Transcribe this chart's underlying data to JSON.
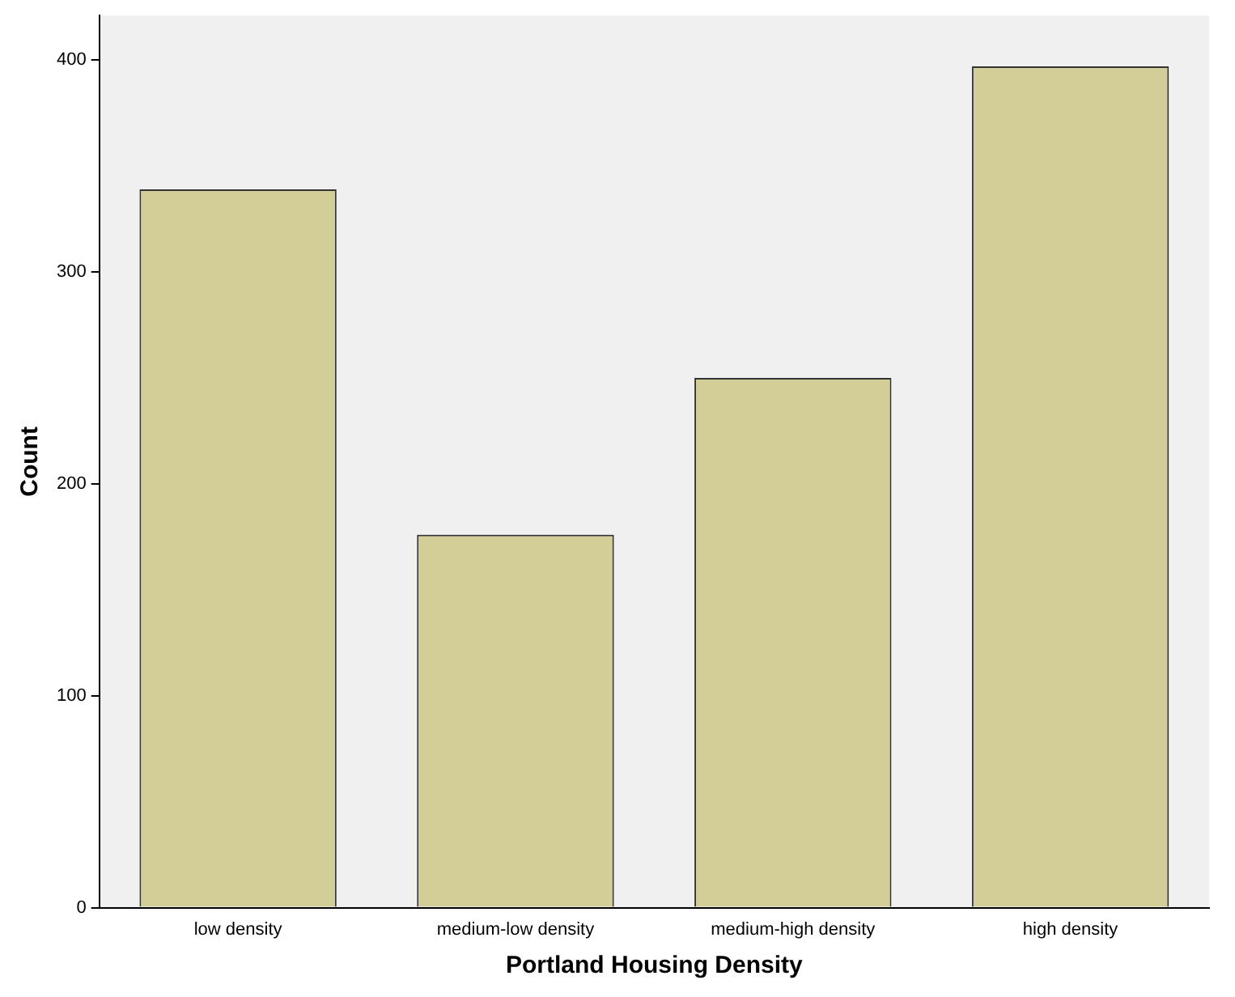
{
  "chart_data": {
    "type": "bar",
    "xlabel": "Portland Housing Density",
    "ylabel": "Count",
    "categories": [
      "low density",
      "medium-low density",
      "medium-high density",
      "high density"
    ],
    "values": [
      339,
      176,
      250,
      397
    ],
    "color": "#d3ce97",
    "ylim": [
      0,
      421
    ],
    "yticks": [
      0,
      100,
      200,
      300,
      400
    ],
    "grid": false,
    "legend": false
  }
}
